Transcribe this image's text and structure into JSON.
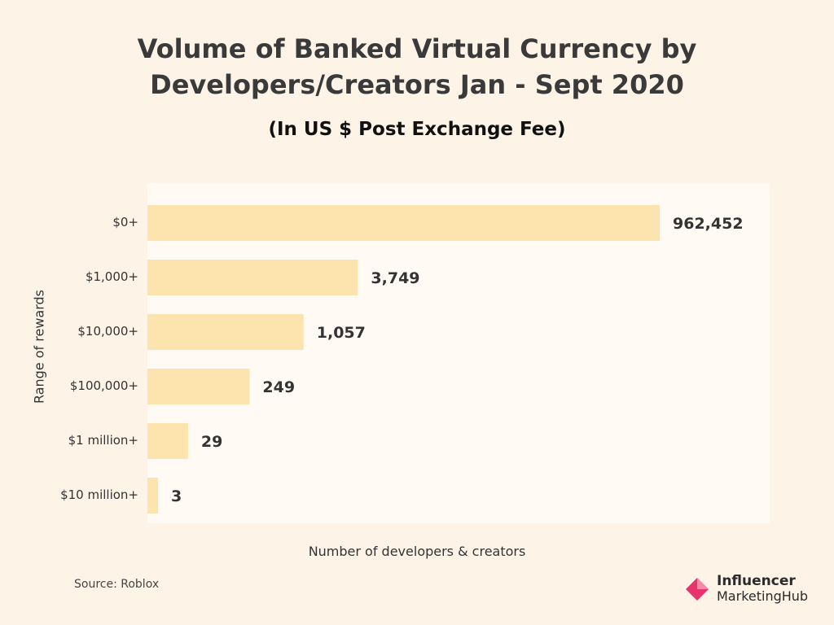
{
  "chart_data": {
    "type": "bar",
    "orientation": "horizontal",
    "title": "Volume of Banked Virtual Currency by Developers/Creators Jan - Sept 2020",
    "title_lines": [
      "Volume of Banked Virtual Currency by",
      "Developers/Creators Jan - Sept 2020"
    ],
    "subtitle": "(In US $ Post Exchange Fee)",
    "xlabel": "Number of developers & creators",
    "ylabel": "Range of rewards",
    "categories": [
      "$0+",
      "$1,000+",
      "$10,000+",
      "$100,000+",
      "$1 million+",
      "$10 million+"
    ],
    "values": [
      962452,
      3749,
      1057,
      249,
      29,
      3
    ],
    "value_labels": [
      "962,452",
      "3,749",
      "1,057",
      "249",
      "29",
      "3"
    ],
    "scale": "non-linear (bar lengths not proportional)",
    "grid": false,
    "legend": "none",
    "bar_color": "#fde3ae"
  },
  "source": "Source: Roblox",
  "logo": {
    "line1": "Influencer",
    "line2": "MarketingHub",
    "mark_colors": [
      "#e8336d",
      "#f28aa8"
    ]
  },
  "colors": {
    "background": "#fdf3e7",
    "plot_background": "#fffbf4",
    "text": "#333333"
  }
}
